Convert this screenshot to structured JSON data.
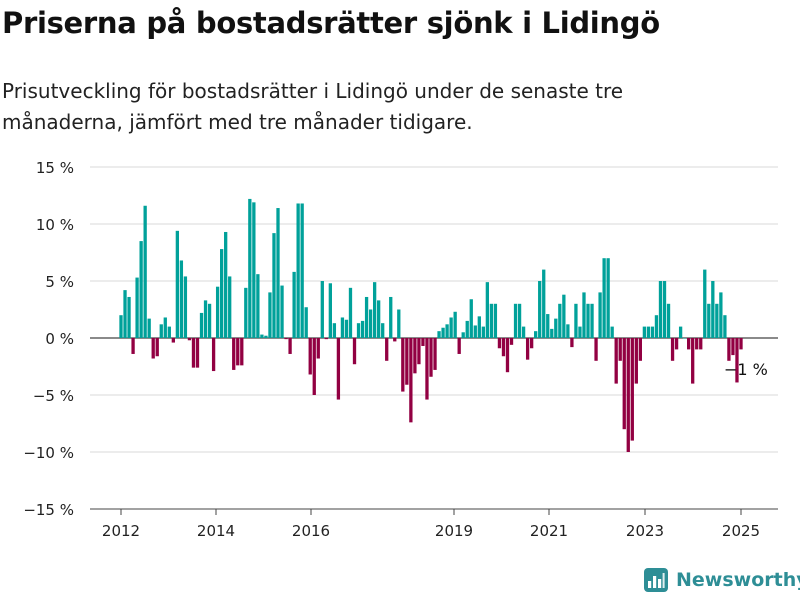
{
  "title": "Priserna på bostadsrätter sjönk i Lidingö",
  "subtitle": "Prisutveckling för bostadsrätter i Lidingö under de senaste tre månaderna, jämfört med tre månader tidigare.",
  "brand": {
    "name": "Newsworthy",
    "icon": "bar-chart-logo-icon"
  },
  "colors": {
    "positive": "#00a19a",
    "negative": "#920042",
    "grid": "#d8d8d8",
    "brand": "#2e8e96"
  },
  "chart_data": {
    "type": "bar",
    "title": "Priserna på bostadsrätter sjönk i Lidingö",
    "xlabel": "",
    "ylabel": "",
    "ylim": [
      -15,
      15
    ],
    "y_ticks": [
      {
        "value": 15,
        "label": "15 %"
      },
      {
        "value": 10,
        "label": "10 %"
      },
      {
        "value": 5,
        "label": "5 %"
      },
      {
        "value": 0,
        "label": "0 %"
      },
      {
        "value": -5,
        "label": "−5 %"
      },
      {
        "value": -10,
        "label": "−10 %"
      },
      {
        "value": -15,
        "label": "−15 %"
      }
    ],
    "x_ticks": [
      "2012",
      "2014",
      "2016",
      "2019",
      "2021",
      "2023",
      "2025"
    ],
    "grid": true,
    "annotation": {
      "label": "−1 %",
      "value": -1
    },
    "series": [
      {
        "values": [
          2,
          4.2,
          3.6,
          -1.4,
          5.3,
          8.5,
          11.6,
          1.7,
          -1.8,
          -1.6,
          1.2,
          1.8,
          1,
          -0.4,
          9.4,
          6.8,
          5.4,
          -0.2,
          -2.6,
          -2.6,
          2.2,
          3.3,
          3,
          -2.9,
          4.5,
          7.8,
          9.3,
          5.4,
          -2.8,
          -2.4,
          -2.4,
          4.4,
          12.2,
          11.9,
          5.6,
          0.3,
          0.2,
          4,
          9.2,
          11.4,
          4.6,
          -0.1,
          -1.4,
          5.8,
          11.8,
          11.8,
          2.7,
          -3.2,
          -5,
          -1.8,
          5,
          -0.1,
          4.8,
          1.3,
          -5.4,
          1.8,
          1.6,
          4.4,
          -2.3,
          1.3,
          1.5,
          3.6,
          2.5,
          4.9,
          3.3,
          1.3,
          -2,
          3.6,
          -0.3,
          2.5,
          -4.7,
          -4.1,
          -7.4,
          -3.1,
          -2.3,
          -0.7,
          -5.4,
          -3.4,
          -2.8,
          0.6,
          0.9,
          1.2,
          1.8,
          2.3,
          -1.4,
          0.5,
          1.5,
          3.4,
          1.1,
          1.9,
          1,
          4.9,
          3,
          3,
          -0.9,
          -1.6,
          -3,
          -0.6,
          3,
          3,
          1,
          -1.9,
          -0.9,
          0.6,
          5,
          6,
          2.1,
          0.8,
          1.7,
          3,
          3.8,
          1.2,
          -0.8,
          3,
          1,
          4,
          3,
          3,
          -2,
          4,
          7,
          7,
          1,
          -4,
          -2,
          -8,
          -10,
          -9,
          -4,
          -2,
          1,
          1,
          1,
          2,
          5,
          5,
          3,
          -2,
          -1,
          1,
          0,
          -1,
          -4,
          -1,
          -1,
          6,
          3,
          5,
          3,
          4,
          2,
          -2,
          -1.5,
          -3.9,
          -1
        ]
      }
    ]
  }
}
